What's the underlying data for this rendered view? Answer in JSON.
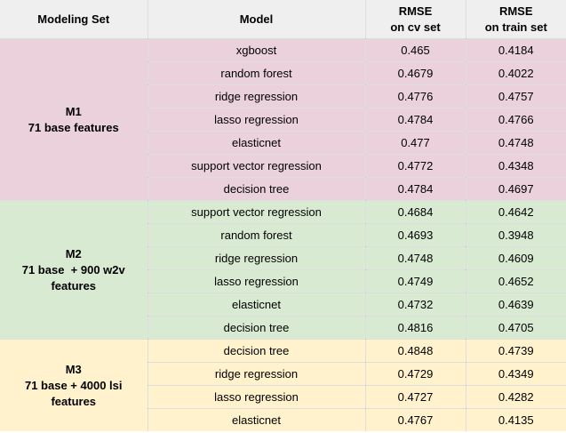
{
  "table": {
    "header": {
      "modeling_set": "Modeling Set",
      "model": "Model",
      "rmse_cv": "RMSE\non cv set",
      "rmse_train": "RMSE\non train set"
    },
    "colors": {
      "header_bg": "#efefef",
      "grid_line": "rgba(0,0,0,0.13)",
      "text": "#000000",
      "m1_bg": "#ead1dc",
      "m2_bg": "#d9ead3",
      "m3_bg": "#fff2cc"
    },
    "groups": [
      {
        "id": "M1",
        "label": "M1\n71 base features",
        "bg": "#ead1dc",
        "rows": [
          {
            "model": "xgboost",
            "rmse_cv": "0.465",
            "rmse_train": "0.4184"
          },
          {
            "model": "random forest",
            "rmse_cv": "0.4679",
            "rmse_train": "0.4022"
          },
          {
            "model": "ridge regression",
            "rmse_cv": "0.4776",
            "rmse_train": "0.4757"
          },
          {
            "model": "lasso regression",
            "rmse_cv": "0.4784",
            "rmse_train": "0.4766"
          },
          {
            "model": "elasticnet",
            "rmse_cv": "0.477",
            "rmse_train": "0.4748"
          },
          {
            "model": "support vector regression",
            "rmse_cv": "0.4772",
            "rmse_train": "0.4348"
          },
          {
            "model": "decision tree",
            "rmse_cv": "0.4784",
            "rmse_train": "0.4697"
          }
        ]
      },
      {
        "id": "M2",
        "label": "M2\n71 base  + 900 w2v\nfeatures",
        "bg": "#d9ead3",
        "rows": [
          {
            "model": "support vector regression",
            "rmse_cv": "0.4684",
            "rmse_train": "0.4642"
          },
          {
            "model": "random forest",
            "rmse_cv": "0.4693",
            "rmse_train": "0.3948"
          },
          {
            "model": "ridge regression",
            "rmse_cv": "0.4748",
            "rmse_train": "0.4609"
          },
          {
            "model": "lasso regression",
            "rmse_cv": "0.4749",
            "rmse_train": "0.4652"
          },
          {
            "model": "elasticnet",
            "rmse_cv": "0.4732",
            "rmse_train": "0.4639"
          },
          {
            "model": "decision tree",
            "rmse_cv": "0.4816",
            "rmse_train": "0.4705"
          }
        ]
      },
      {
        "id": "M3",
        "label": "M3\n71 base + 4000 lsi\nfeatures",
        "bg": "#fff2cc",
        "rows": [
          {
            "model": "decision tree",
            "rmse_cv": "0.4848",
            "rmse_train": "0.4739"
          },
          {
            "model": "ridge regression",
            "rmse_cv": "0.4729",
            "rmse_train": "0.4349"
          },
          {
            "model": "lasso regression",
            "rmse_cv": "0.4727",
            "rmse_train": "0.4282"
          },
          {
            "model": "elasticnet",
            "rmse_cv": "0.4767",
            "rmse_train": "0.4135"
          }
        ]
      }
    ]
  },
  "chart_data": {
    "type": "table",
    "title": "",
    "columns": [
      "Modeling Set",
      "Model",
      "RMSE on cv set",
      "RMSE on train set"
    ],
    "rows": [
      [
        "M1 71 base features",
        "xgboost",
        0.465,
        0.4184
      ],
      [
        "M1 71 base features",
        "random forest",
        0.4679,
        0.4022
      ],
      [
        "M1 71 base features",
        "ridge regression",
        0.4776,
        0.4757
      ],
      [
        "M1 71 base features",
        "lasso regression",
        0.4784,
        0.4766
      ],
      [
        "M1 71 base features",
        "elasticnet",
        0.477,
        0.4748
      ],
      [
        "M1 71 base features",
        "support vector regression",
        0.4772,
        0.4348
      ],
      [
        "M1 71 base features",
        "decision tree",
        0.4784,
        0.4697
      ],
      [
        "M2 71 base + 900 w2v features",
        "support vector regression",
        0.4684,
        0.4642
      ],
      [
        "M2 71 base + 900 w2v features",
        "random forest",
        0.4693,
        0.3948
      ],
      [
        "M2 71 base + 900 w2v features",
        "ridge regression",
        0.4748,
        0.4609
      ],
      [
        "M2 71 base + 900 w2v features",
        "lasso regression",
        0.4749,
        0.4652
      ],
      [
        "M2 71 base + 900 w2v features",
        "elasticnet",
        0.4732,
        0.4639
      ],
      [
        "M2 71 base + 900 w2v features",
        "decision tree",
        0.4816,
        0.4705
      ],
      [
        "M3 71 base + 4000 lsi features",
        "decision tree",
        0.4848,
        0.4739
      ],
      [
        "M3 71 base + 4000 lsi features",
        "ridge regression",
        0.4729,
        0.4349
      ],
      [
        "M3 71 base + 4000 lsi features",
        "lasso regression",
        0.4727,
        0.4282
      ],
      [
        "M3 71 base + 4000 lsi features",
        "elasticnet",
        0.4767,
        0.4135
      ]
    ]
  }
}
